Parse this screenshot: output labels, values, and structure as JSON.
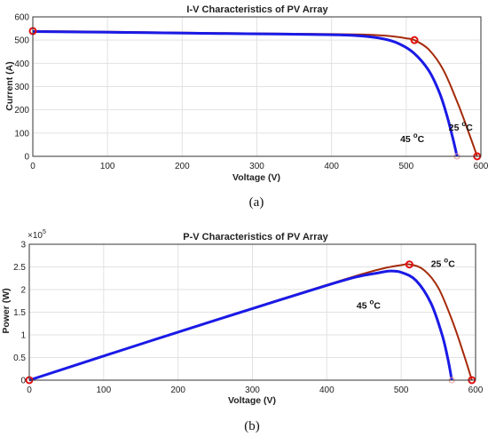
{
  "chart_data": [
    {
      "type": "line",
      "panel": "a",
      "caption": "(a)",
      "title": "I-V Characteristics of PV Array",
      "xlabel": "Voltage (V)",
      "ylabel": "Current (A)",
      "xlim": [
        0,
        600
      ],
      "ylim": [
        0,
        600
      ],
      "xticks": [
        0,
        100,
        200,
        300,
        400,
        500,
        600
      ],
      "yticks": [
        0,
        100,
        200,
        300,
        400,
        500,
        600
      ],
      "grid": true,
      "series": [
        {
          "name": "25 oC",
          "color": "#a52a0a",
          "x": [
            0,
            100,
            200,
            300,
            400,
            450,
            480,
            500,
            511,
            530,
            550,
            570,
            585,
            595
          ],
          "y": [
            539,
            536,
            532,
            529,
            526,
            523,
            517,
            508,
            500,
            460,
            370,
            220,
            90,
            0
          ]
        },
        {
          "name": "45 oC",
          "color": "#1a1ae6",
          "x": [
            0,
            100,
            200,
            300,
            400,
            440,
            470,
            490,
            510,
            530,
            545,
            555,
            563,
            568
          ],
          "y": [
            537,
            534,
            530,
            527,
            523,
            518,
            505,
            485,
            445,
            370,
            270,
            170,
            70,
            0
          ]
        }
      ],
      "markers": [
        {
          "x": 0,
          "y": 539
        },
        {
          "x": 511,
          "y": 500
        },
        {
          "x": 595,
          "y": 0
        },
        {
          "x": 568,
          "y": 0
        }
      ],
      "annotations": [
        {
          "text": "25 ",
          "sup": "o",
          "unit": "C",
          "x": 557,
          "y": 110
        },
        {
          "text": "45 ",
          "sup": "o",
          "unit": "C",
          "x": 492,
          "y": 62
        }
      ]
    },
    {
      "type": "line",
      "panel": "b",
      "caption": "(b)",
      "title": "P-V Characteristics of PV Array",
      "xlabel": "Voltage (V)",
      "ylabel": "Power (W)",
      "y_multiplier": "×10",
      "y_multiplier_exp": "5",
      "xlim": [
        0,
        600
      ],
      "ylim": [
        0,
        3
      ],
      "xticks": [
        0,
        100,
        200,
        300,
        400,
        500,
        600
      ],
      "yticks": [
        0,
        0.5,
        1,
        1.5,
        2,
        2.5,
        3
      ],
      "ytick_labels": [
        "0",
        "0.5",
        "1",
        "1.5",
        "2",
        "2.5",
        "3"
      ],
      "grid": true,
      "series": [
        {
          "name": "25 oC",
          "color": "#a52a0a",
          "x": [
            0,
            100,
            200,
            300,
            400,
            450,
            480,
            500,
            511,
            530,
            550,
            570,
            585,
            595
          ],
          "y": [
            0,
            0.536,
            1.064,
            1.587,
            2.104,
            2.354,
            2.482,
            2.54,
            2.555,
            2.44,
            2.035,
            1.254,
            0.527,
            0
          ]
        },
        {
          "name": "45 oC",
          "color": "#1a1ae6",
          "x": [
            0,
            100,
            200,
            300,
            400,
            440,
            470,
            485,
            500,
            520,
            540,
            555,
            563,
            568
          ],
          "y": [
            0,
            0.534,
            1.06,
            1.581,
            2.092,
            2.28,
            2.37,
            2.41,
            2.38,
            2.2,
            1.7,
            1.0,
            0.45,
            0
          ]
        }
      ],
      "markers": [
        {
          "x": 0,
          "y": 0
        },
        {
          "x": 511,
          "y": 2.555
        },
        {
          "x": 595,
          "y": 0
        },
        {
          "x": 568,
          "y": 0
        }
      ],
      "annotations": [
        {
          "text": "25 ",
          "sup": "o",
          "unit": "C",
          "x": 540,
          "y": 2.5
        },
        {
          "text": "45 ",
          "sup": "o",
          "unit": "C",
          "x": 440,
          "y": 1.58
        }
      ]
    }
  ]
}
